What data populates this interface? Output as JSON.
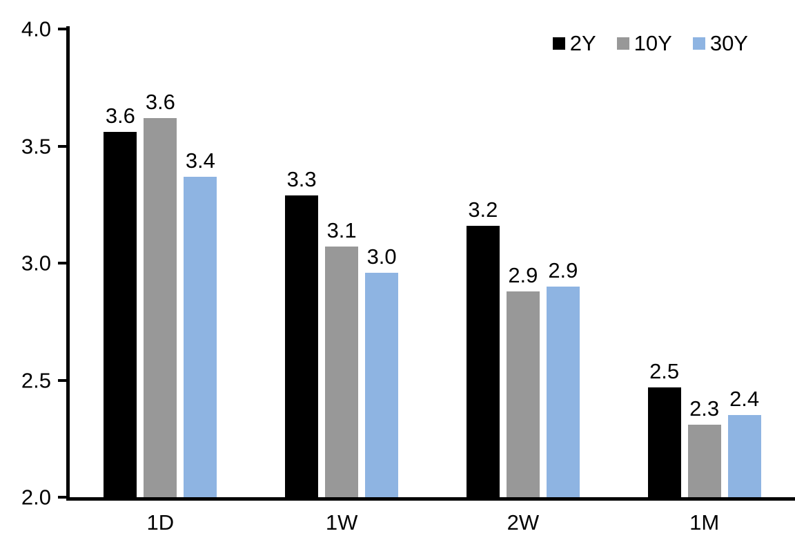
{
  "chart_data": {
    "type": "bar",
    "title": "",
    "xlabel": "",
    "ylabel": "",
    "categories": [
      "1D",
      "1W",
      "2W",
      "1M"
    ],
    "series": [
      {
        "name": "2Y",
        "color": "#000000",
        "values": [
          3.56,
          3.29,
          3.16,
          2.47
        ],
        "labels": [
          "3.6",
          "3.3",
          "3.2",
          "2.5"
        ]
      },
      {
        "name": "10Y",
        "color": "#989898",
        "values": [
          3.62,
          3.07,
          2.88,
          2.31
        ],
        "labels": [
          "3.6",
          "3.1",
          "2.9",
          "2.3"
        ]
      },
      {
        "name": "30Y",
        "color": "#8EB4E2",
        "values": [
          3.37,
          2.96,
          2.9,
          2.35
        ],
        "labels": [
          "3.4",
          "3.0",
          "2.9",
          "2.4"
        ]
      }
    ],
    "ylim": [
      2.0,
      4.0
    ],
    "yticks": [
      "4.0",
      "3.5",
      "3.0",
      "2.5",
      "2.0"
    ],
    "grid": false,
    "legend_position": "top-right"
  }
}
